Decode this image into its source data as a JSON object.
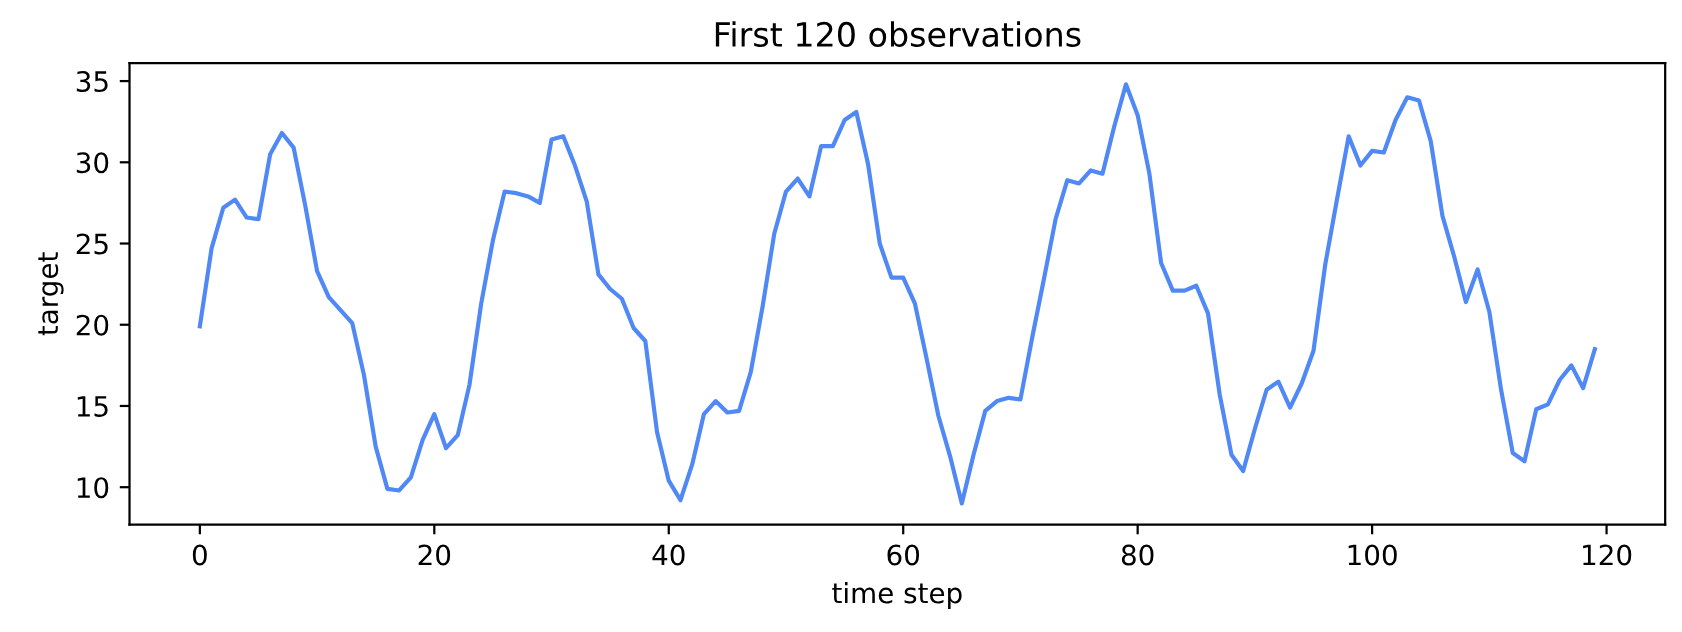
{
  "chart_data": {
    "type": "line",
    "title": "First 120 observations",
    "xlabel": "time step",
    "ylabel": "target",
    "x": [
      0,
      1,
      2,
      3,
      4,
      5,
      6,
      7,
      8,
      9,
      10,
      11,
      12,
      13,
      14,
      15,
      16,
      17,
      18,
      19,
      20,
      21,
      22,
      23,
      24,
      25,
      26,
      27,
      28,
      29,
      30,
      31,
      32,
      33,
      34,
      35,
      36,
      37,
      38,
      39,
      40,
      41,
      42,
      43,
      44,
      45,
      46,
      47,
      48,
      49,
      50,
      51,
      52,
      53,
      54,
      55,
      56,
      57,
      58,
      59,
      60,
      61,
      62,
      63,
      64,
      65,
      66,
      67,
      68,
      69,
      70,
      71,
      72,
      73,
      74,
      75,
      76,
      77,
      78,
      79,
      80,
      81,
      82,
      83,
      84,
      85,
      86,
      87,
      88,
      89,
      90,
      91,
      92,
      93,
      94,
      95,
      96,
      97,
      98,
      99,
      100,
      101,
      102,
      103,
      104,
      105,
      106,
      107,
      108,
      109,
      110,
      111,
      112,
      113,
      114,
      115,
      116,
      117,
      118,
      119
    ],
    "series": [
      {
        "color": "#5088f5",
        "values": [
          19.9,
          24.7,
          27.2,
          27.7,
          26.6,
          26.5,
          30.5,
          31.8,
          30.9,
          27.3,
          23.3,
          21.7,
          20.9,
          20.1,
          16.9,
          12.5,
          9.9,
          9.8,
          10.6,
          12.9,
          14.5,
          12.4,
          13.2,
          16.3,
          21.3,
          25.2,
          28.2,
          28.1,
          27.9,
          27.5,
          31.4,
          31.6,
          29.8,
          27.6,
          23.1,
          22.2,
          21.6,
          19.8,
          19.0,
          13.4,
          10.4,
          9.2,
          11.4,
          14.5,
          15.3,
          14.6,
          14.7,
          17.1,
          21.1,
          25.6,
          28.2,
          29.0,
          27.9,
          31.0,
          31.0,
          32.6,
          33.1,
          29.9,
          25.0,
          22.9,
          22.9,
          21.3,
          17.9,
          14.4,
          11.9,
          9.0,
          12.0,
          14.7,
          15.3,
          15.5,
          15.4,
          19.2,
          22.8,
          26.5,
          28.9,
          28.7,
          29.5,
          29.3,
          32.2,
          34.8,
          32.9,
          29.3,
          23.8,
          22.1,
          22.1,
          22.4,
          20.7,
          15.7,
          12.0,
          11.0,
          13.6,
          16.0,
          16.5,
          14.9,
          16.4,
          18.4,
          23.7,
          27.7,
          31.6,
          29.8,
          30.7,
          30.6,
          32.6,
          34.0,
          33.8,
          31.3,
          26.7,
          24.2,
          21.4,
          23.4,
          20.8,
          16.0,
          12.1,
          11.6,
          14.8,
          15.1,
          16.6,
          17.5,
          16.1,
          18.5
        ]
      }
    ],
    "xlim": [
      -6,
      125
    ],
    "ylim": [
      7.7,
      36.1
    ],
    "xticks": [
      0,
      20,
      40,
      60,
      80,
      100,
      120
    ],
    "yticks": [
      10,
      15,
      20,
      25,
      30,
      35
    ],
    "grid": false,
    "legend": false
  }
}
